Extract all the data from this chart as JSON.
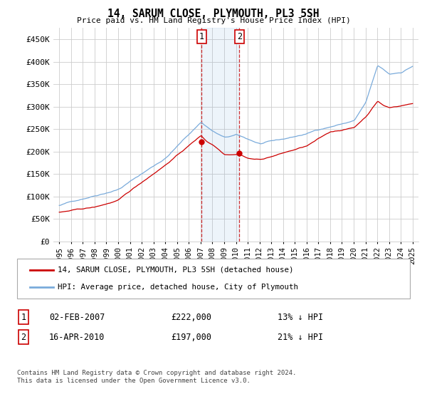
{
  "title": "14, SARUM CLOSE, PLYMOUTH, PL3 5SH",
  "subtitle": "Price paid vs. HM Land Registry's House Price Index (HPI)",
  "legend_line1": "14, SARUM CLOSE, PLYMOUTH, PL3 5SH (detached house)",
  "legend_line2": "HPI: Average price, detached house, City of Plymouth",
  "transaction1_date": "02-FEB-2007",
  "transaction1_price": 222000,
  "transaction1_hpi_diff": "13% ↓ HPI",
  "transaction2_date": "16-APR-2010",
  "transaction2_price": 197000,
  "transaction2_hpi_diff": "21% ↓ HPI",
  "footer": "Contains HM Land Registry data © Crown copyright and database right 2024.\nThis data is licensed under the Open Government Licence v3.0.",
  "hpi_color": "#7aabdb",
  "price_color": "#cc0000",
  "marker_color": "#cc0000",
  "background_color": "#ffffff",
  "grid_color": "#cccccc",
  "transaction1_year": 2007.08,
  "transaction2_year": 2010.29,
  "ylim": [
    0,
    475000
  ],
  "yticks": [
    0,
    50000,
    100000,
    150000,
    200000,
    250000,
    300000,
    350000,
    400000,
    450000
  ],
  "xlim_start": 1994.5,
  "xlim_end": 2025.5,
  "xticks": [
    1995,
    1996,
    1997,
    1998,
    1999,
    2000,
    2001,
    2002,
    2003,
    2004,
    2005,
    2006,
    2007,
    2008,
    2009,
    2010,
    2011,
    2012,
    2013,
    2014,
    2015,
    2016,
    2017,
    2018,
    2019,
    2020,
    2021,
    2022,
    2023,
    2024,
    2025
  ]
}
